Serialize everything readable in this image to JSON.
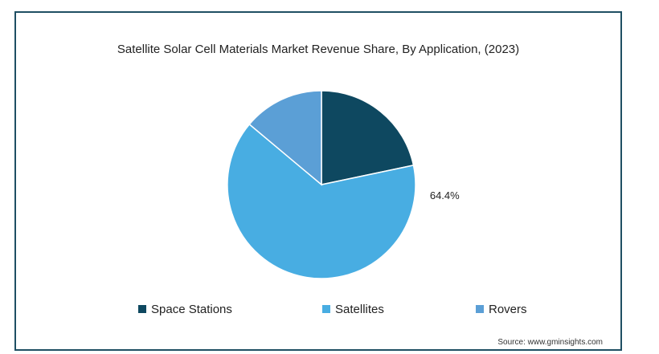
{
  "chart_data": {
    "type": "pie",
    "title": "Satellite Solar Cell Materials Market Revenue Share, By Application, (2023)",
    "slices": [
      {
        "name": "Space Stations",
        "value": 21.7,
        "color": "#0e4860"
      },
      {
        "name": "Satellites",
        "value": 64.4,
        "color": "#48ade2",
        "label": "64.4%"
      },
      {
        "name": "Rovers",
        "value": 13.9,
        "color": "#5b9fd6"
      }
    ],
    "legend_position": "bottom",
    "source": "Source: www.gminsights.com"
  }
}
